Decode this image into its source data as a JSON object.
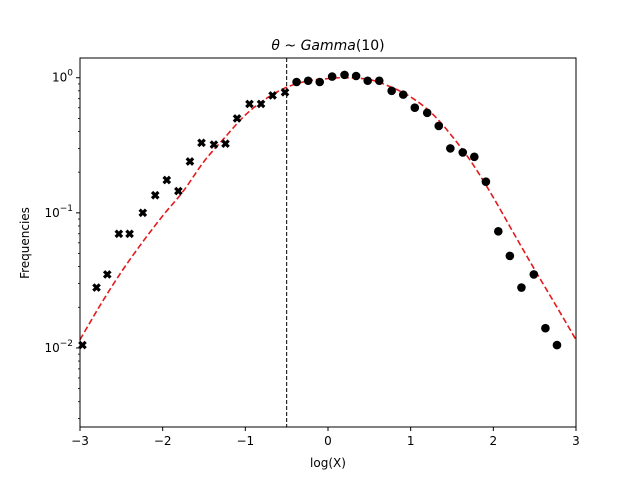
{
  "chart_data": {
    "type": "scatter",
    "title": "θ ~ Gamma(10)",
    "xlabel": "log(X)",
    "ylabel": "Frequencies",
    "xlim": [
      -3,
      3
    ],
    "ylim": [
      0.0026,
      1.4
    ],
    "yscale": "log",
    "grid": false,
    "x_ticks": [
      -3,
      -2,
      -1,
      0,
      1,
      2,
      3
    ],
    "x_tick_labels": [
      "−3",
      "−2",
      "−1",
      "0",
      "1",
      "2",
      "3"
    ],
    "y_ticks": [
      {
        "value": 0.01,
        "base": "10",
        "exp": "−2"
      },
      {
        "value": 0.1,
        "base": "10",
        "exp": "−1"
      },
      {
        "value": 1,
        "base": "10",
        "exp": "0"
      }
    ],
    "threshold_x": -0.5,
    "fitted_curve": {
      "color": "#e41a1c",
      "style": "dashed",
      "x": [
        -3.0,
        -2.75,
        -2.5,
        -2.25,
        -2.0,
        -1.75,
        -1.5,
        -1.25,
        -1.0,
        -0.75,
        -0.5,
        -0.25,
        0.0,
        0.2,
        0.5,
        0.75,
        1.0,
        1.25,
        1.5,
        1.75,
        2.0,
        2.25,
        2.5,
        2.75,
        3.0
      ],
      "y": [
        0.0115,
        0.021,
        0.0365,
        0.06,
        0.095,
        0.145,
        0.24,
        0.36,
        0.53,
        0.7,
        0.85,
        0.945,
        0.985,
        1.0,
        0.97,
        0.86,
        0.72,
        0.55,
        0.37,
        0.23,
        0.13,
        0.07,
        0.038,
        0.021,
        0.0115
      ]
    },
    "series": [
      {
        "marker": "x",
        "color": "#000000",
        "points": [
          [
            -2.97,
            0.0105
          ],
          [
            -2.8,
            0.028
          ],
          [
            -2.67,
            0.035
          ],
          [
            -2.53,
            0.07
          ],
          [
            -2.4,
            0.07
          ],
          [
            -2.24,
            0.1
          ],
          [
            -2.09,
            0.135
          ],
          [
            -1.95,
            0.175
          ],
          [
            -1.81,
            0.145
          ],
          [
            -1.67,
            0.24
          ],
          [
            -1.53,
            0.33
          ],
          [
            -1.38,
            0.32
          ],
          [
            -1.24,
            0.325
          ],
          [
            -1.1,
            0.5
          ],
          [
            -0.95,
            0.64
          ],
          [
            -0.81,
            0.64
          ],
          [
            -0.67,
            0.74
          ],
          [
            -0.52,
            0.78
          ]
        ]
      },
      {
        "marker": "o",
        "color": "#000000",
        "points": [
          [
            -0.38,
            0.93
          ],
          [
            -0.24,
            0.95
          ],
          [
            -0.1,
            0.93
          ],
          [
            0.05,
            1.02
          ],
          [
            0.2,
            1.05
          ],
          [
            0.34,
            1.03
          ],
          [
            0.48,
            0.95
          ],
          [
            0.62,
            0.95
          ],
          [
            0.77,
            0.8
          ],
          [
            0.91,
            0.75
          ],
          [
            1.05,
            0.6
          ],
          [
            1.2,
            0.55
          ],
          [
            1.34,
            0.44
          ],
          [
            1.48,
            0.3
          ],
          [
            1.63,
            0.28
          ],
          [
            1.77,
            0.26
          ],
          [
            1.91,
            0.17
          ],
          [
            2.06,
            0.073
          ],
          [
            2.2,
            0.048
          ],
          [
            2.34,
            0.028
          ],
          [
            2.49,
            0.035
          ],
          [
            2.63,
            0.014
          ],
          [
            2.77,
            0.0105
          ]
        ]
      }
    ]
  }
}
